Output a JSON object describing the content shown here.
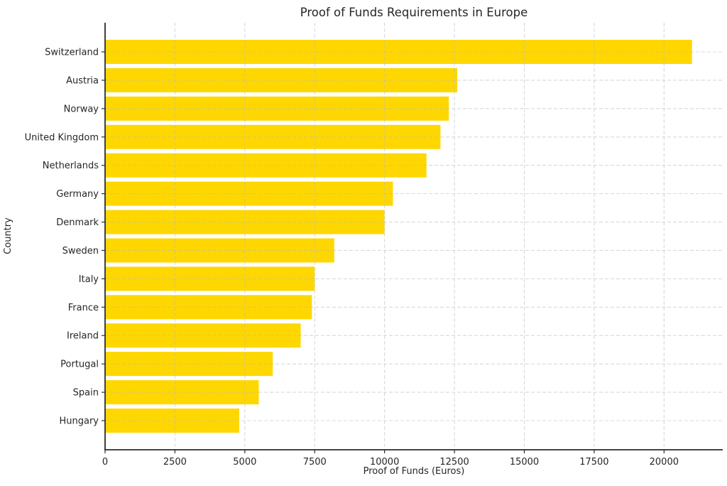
{
  "chart_data": {
    "type": "bar",
    "orientation": "horizontal",
    "title": "Proof of Funds Requirements in Europe",
    "xlabel": "Proof of Funds (Euros)",
    "ylabel": "Country",
    "categories": [
      "Switzerland",
      "Austria",
      "Norway",
      "United Kingdom",
      "Netherlands",
      "Germany",
      "Denmark",
      "Sweden",
      "Italy",
      "France",
      "Ireland",
      "Portugal",
      "Spain",
      "Hungary"
    ],
    "values": [
      21000,
      12600,
      12300,
      12000,
      11500,
      10300,
      10000,
      8200,
      7500,
      7400,
      7000,
      6000,
      5500,
      4800
    ],
    "xticks": [
      0,
      2500,
      5000,
      7500,
      10000,
      12500,
      15000,
      17500,
      20000
    ],
    "xtick_labels": [
      "0",
      "2500",
      "5000",
      "7500",
      "10000",
      "12500",
      "15000",
      "17500",
      "20000"
    ],
    "xlim": [
      0,
      22100
    ],
    "grid": true,
    "grid_style": "dashed",
    "legend": "none",
    "colors": {
      "bar": "#FFD700",
      "grid": "#b9b9b9",
      "spine": "#2b2b2b",
      "tick": "#2b2b2b",
      "text": "#262626",
      "background": "#ffffff"
    }
  }
}
